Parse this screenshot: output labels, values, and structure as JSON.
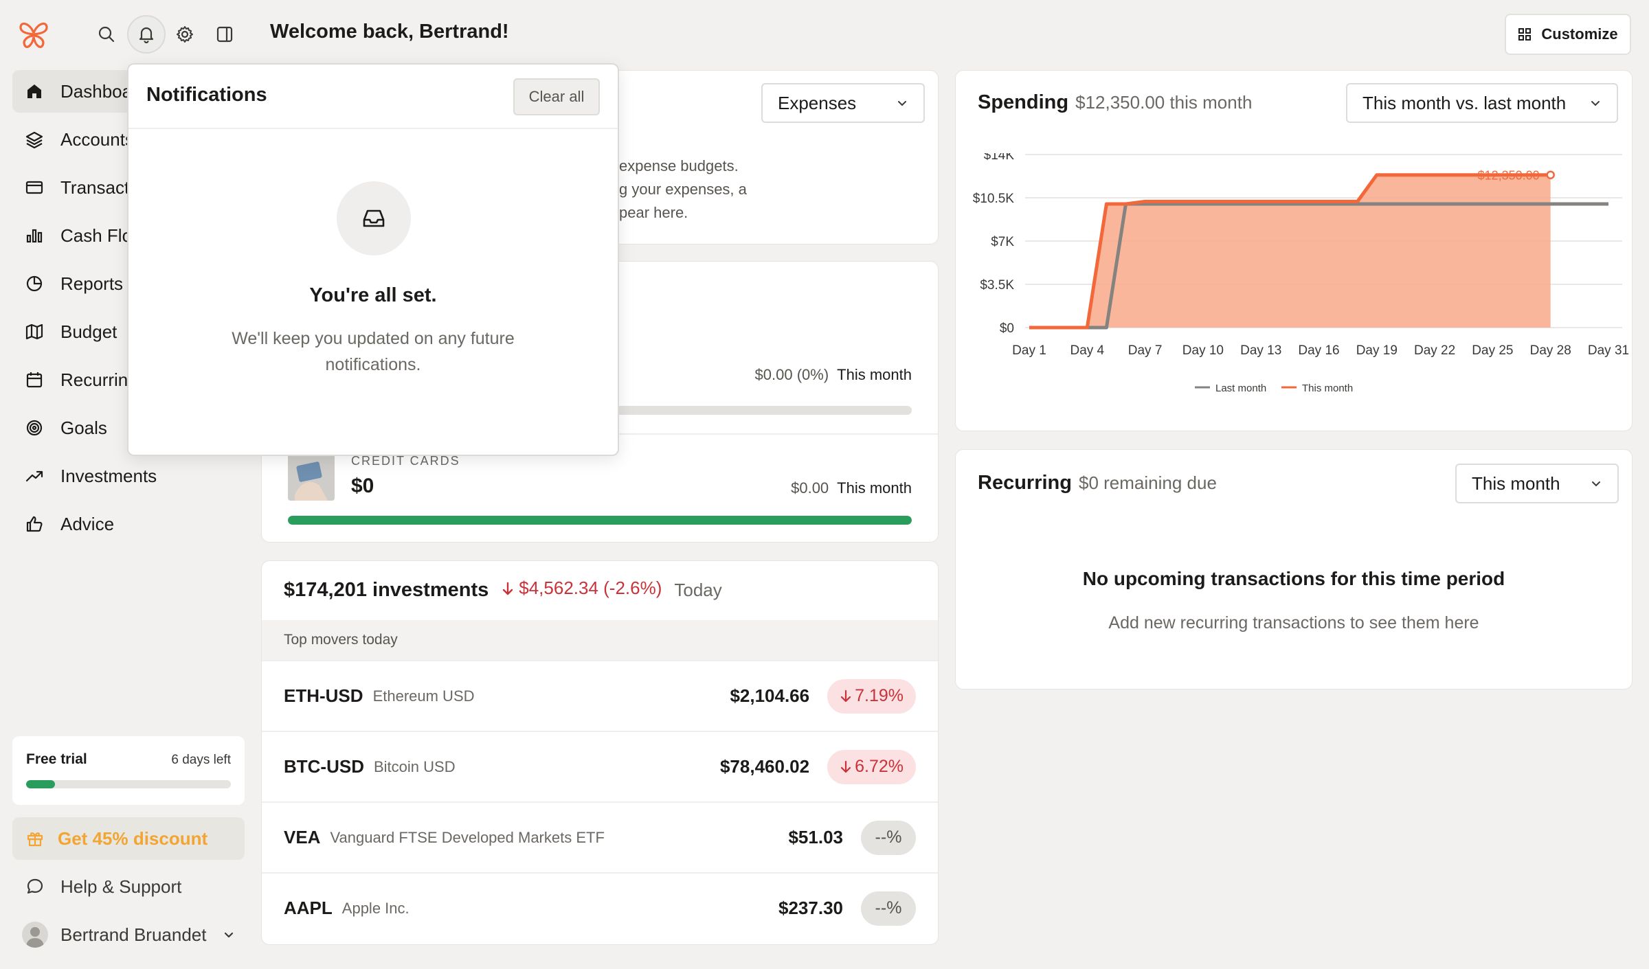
{
  "header": {
    "welcome": "Welcome back, Bertrand!",
    "customize_label": "Customize"
  },
  "sidebar": {
    "items": [
      {
        "label": "Dashboard",
        "icon": "home-icon"
      },
      {
        "label": "Accounts",
        "icon": "layers-icon"
      },
      {
        "label": "Transactions",
        "icon": "credit-card-icon"
      },
      {
        "label": "Cash Flow",
        "icon": "bar-chart-icon"
      },
      {
        "label": "Reports",
        "icon": "pie-chart-icon"
      },
      {
        "label": "Budget",
        "icon": "map-icon"
      },
      {
        "label": "Recurring",
        "icon": "calendar-icon"
      },
      {
        "label": "Goals",
        "icon": "target-icon"
      },
      {
        "label": "Investments",
        "icon": "trend-up-icon"
      },
      {
        "label": "Advice",
        "icon": "thumbs-up-icon"
      }
    ],
    "trial": {
      "title": "Free trial",
      "days_left": "6 days left",
      "progress": 0.14
    },
    "discount_label": "Get 45% discount",
    "help_label": "Help & Support",
    "user_name": "Bertrand Bruandet"
  },
  "budget": {
    "dropdown": "Expenses",
    "text_lines": [
      "expense budgets.",
      "g your expenses, a",
      "pear here."
    ]
  },
  "accounts": {
    "row1": {
      "amount": "$0.00 (0%)",
      "period": "This month",
      "progress": 0
    },
    "credit_cards": {
      "label": "CREDIT CARDS",
      "total": "$0",
      "amount": "$0.00",
      "period": "This month",
      "progress": 1.0
    }
  },
  "investments": {
    "total": "$174,201 investments",
    "change": "$4,562.34 (-2.6%)",
    "period": "Today",
    "movers_title": "Top movers today",
    "movers": [
      {
        "symbol": "ETH-USD",
        "name": "Ethereum USD",
        "price": "$2,104.66",
        "change": "7.19%",
        "direction": "down"
      },
      {
        "symbol": "BTC-USD",
        "name": "Bitcoin USD",
        "price": "$78,460.02",
        "change": "6.72%",
        "direction": "down"
      },
      {
        "symbol": "VEA",
        "name": "Vanguard FTSE Developed Markets ETF",
        "price": "$51.03",
        "change": "--%",
        "direction": "flat"
      },
      {
        "symbol": "AAPL",
        "name": "Apple Inc.",
        "price": "$237.30",
        "change": "--%",
        "direction": "flat"
      }
    ]
  },
  "spending": {
    "title": "Spending",
    "subtitle": "$12,350.00 this month",
    "dropdown": "This month vs. last month",
    "end_label": "$12,350.00"
  },
  "chart_data": {
    "type": "area",
    "x_ticks": [
      "Day 1",
      "Day 4",
      "Day 7",
      "Day 10",
      "Day 13",
      "Day 16",
      "Day 19",
      "Day 22",
      "Day 25",
      "Day 28",
      "Day 31"
    ],
    "y_ticks": [
      "$0",
      "$3.5K",
      "$7K",
      "$10.5K",
      "$14K"
    ],
    "ylim": [
      0,
      14000
    ],
    "xlim": [
      1,
      31
    ],
    "legend_position": "bottom",
    "series": [
      {
        "name": "Last month",
        "color": "#858380",
        "x": [
          1,
          5,
          6,
          7,
          31
        ],
        "y": [
          0,
          0,
          10000,
          10000,
          10000
        ]
      },
      {
        "name": "This month",
        "color": "#f2683a",
        "x": [
          1,
          4,
          5,
          6,
          7,
          10,
          13,
          16,
          18,
          19,
          22,
          25,
          28
        ],
        "y": [
          0,
          0,
          10000,
          10000,
          10200,
          10200,
          10200,
          10200,
          10200,
          12350,
          12350,
          12350,
          12350
        ]
      }
    ]
  },
  "recurring": {
    "title": "Recurring",
    "subtitle": "$0 remaining due",
    "dropdown": "This month",
    "empty_title": "No upcoming transactions for this time period",
    "empty_sub": "Add new recurring transactions to see them here"
  },
  "notifications": {
    "title": "Notifications",
    "clear_all": "Clear all",
    "empty_title": "You're all set.",
    "empty_sub": "We'll keep you updated on any future notifications."
  },
  "colors": {
    "brand": "#f2683a",
    "positive": "#2a9d5c",
    "negative": "#c9323a",
    "discount": "#f2a533"
  }
}
